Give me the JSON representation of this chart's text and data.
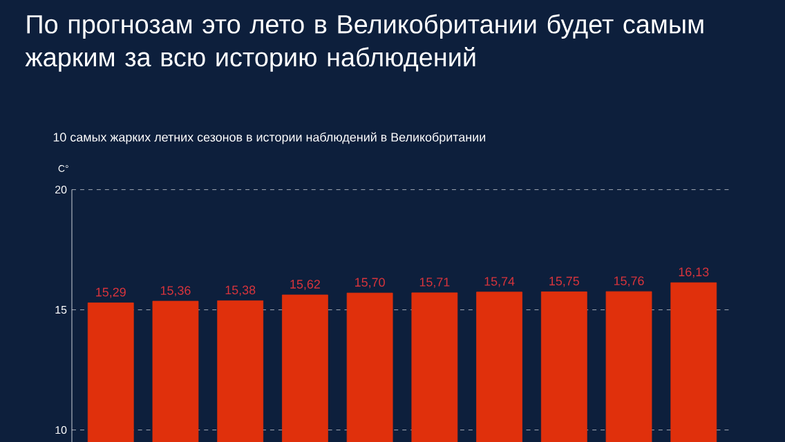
{
  "chart_data": {
    "type": "bar",
    "title": "По прогнозам это лето в Великобритании будет самым жарким за всю историю наблюдений",
    "subtitle": "10 самых жарких летних сезонов в истории наблюдений в Великобритании",
    "ylabel": "C°",
    "categories": [
      null,
      null,
      null,
      null,
      null,
      null,
      null,
      null,
      null,
      null
    ],
    "values": [
      15.29,
      15.36,
      15.38,
      15.62,
      15.7,
      15.71,
      15.74,
      15.75,
      15.76,
      16.13
    ],
    "value_labels": [
      "15,29",
      "15,36",
      "15,38",
      "15,62",
      "15,70",
      "15,71",
      "15,74",
      "15,75",
      "15,76",
      "16,13"
    ],
    "color": "#e0300c",
    "ylim": [
      9.5,
      20
    ],
    "yticks": [
      10,
      15,
      20
    ],
    "grid": "y"
  }
}
